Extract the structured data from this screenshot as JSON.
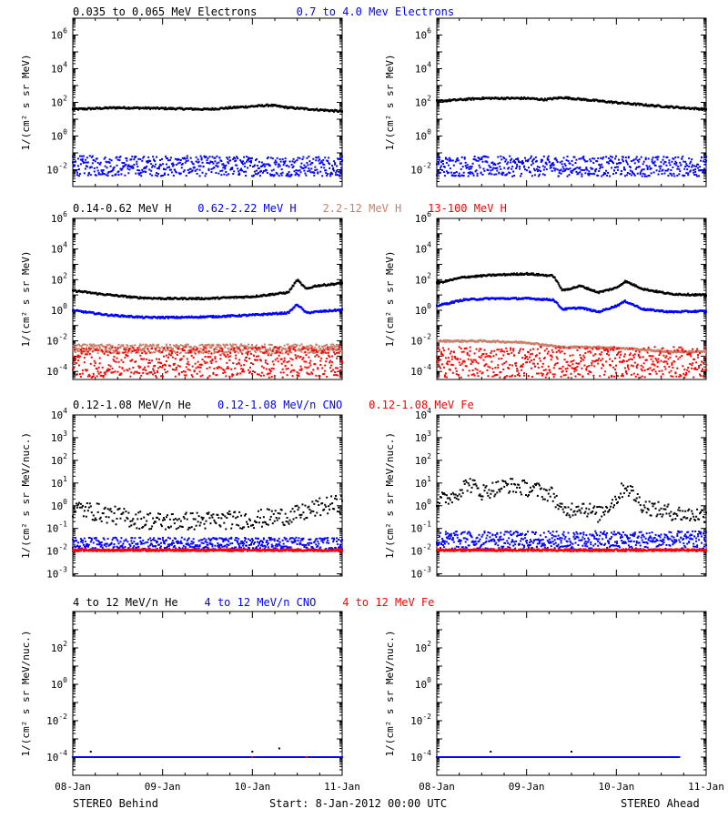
{
  "figure": {
    "footer": {
      "left": "STEREO Behind",
      "center": "Start:  8-Jan-2012 00:00 UTC",
      "right": "STEREO Ahead"
    },
    "x_ticks": [
      "08-Jan",
      "09-Jan",
      "10-Jan",
      "11-Jan"
    ],
    "rows": [
      {
        "headers": [
          {
            "text": "0.035 to 0.065 MeV Electrons",
            "color": "#000000"
          },
          {
            "text": "0.7 to 4.0 Mev Electrons",
            "color": "#0000ff"
          }
        ],
        "ylabel": "1/(cm² s sr MeV)"
      },
      {
        "headers": [
          {
            "text": "0.14-0.62 MeV H",
            "color": "#000000"
          },
          {
            "text": "0.62-2.22 MeV H",
            "color": "#0000ff"
          },
          {
            "text": "2.2-12 MeV H",
            "color": "#c8806a"
          },
          {
            "text": "13-100 MeV H",
            "color": "#ff0000"
          }
        ],
        "ylabel": "1/(cm² s sr MeV)"
      },
      {
        "headers": [
          {
            "text": "0.12-1.08 MeV/n He",
            "color": "#000000"
          },
          {
            "text": "0.12-1.08 MeV/n CNO",
            "color": "#0000ff"
          },
          {
            "text": "0.12-1.08 MeV Fe",
            "color": "#ff0000"
          }
        ],
        "ylabel": "1/(cm² s sr MeV/nuc.)"
      },
      {
        "headers": [
          {
            "text": "4 to 12 MeV/n He",
            "color": "#000000"
          },
          {
            "text": "4 to 12 MeV/n CNO",
            "color": "#0000ff"
          },
          {
            "text": "4 to 12 MeV Fe",
            "color": "#ff0000"
          }
        ],
        "ylabel": "1/(cm² s sr MeV/nuc.)"
      }
    ]
  },
  "chart_data": [
    {
      "panel": "behind-electrons",
      "type": "scatter",
      "scale": "log",
      "ylim": [
        0.001,
        10000000
      ],
      "yticks": [
        0.01,
        1,
        100,
        10000,
        1000000
      ],
      "xlim": [
        0,
        3
      ],
      "x_unit": "days since 08-Jan-2012 00:00 UTC",
      "series": [
        {
          "color": "#000000",
          "style": "line",
          "x": [
            0,
            0.5,
            1,
            1.5,
            2.2,
            2.4,
            3
          ],
          "y": [
            40,
            50,
            45,
            40,
            70,
            50,
            30
          ]
        },
        {
          "color": "#0000ff",
          "style": "band",
          "x": [
            0,
            3
          ],
          "y": [
            0.017,
            0.016
          ],
          "spread": 0.6
        }
      ]
    },
    {
      "panel": "ahead-electrons",
      "type": "scatter",
      "scale": "log",
      "ylim": [
        0.001,
        10000000
      ],
      "yticks": [
        0.01,
        1,
        100,
        10000,
        1000000
      ],
      "xlim": [
        0,
        3
      ],
      "series": [
        {
          "color": "#000000",
          "style": "line",
          "x": [
            0,
            0.5,
            1,
            1.2,
            1.4,
            2,
            2.5,
            3
          ],
          "y": [
            120,
            180,
            180,
            150,
            200,
            100,
            60,
            40
          ]
        },
        {
          "color": "#0000ff",
          "style": "band",
          "x": [
            0,
            3
          ],
          "y": [
            0.016,
            0.016
          ],
          "spread": 0.6
        }
      ]
    },
    {
      "panel": "behind-protons",
      "type": "scatter",
      "scale": "log",
      "ylim": [
        3e-05,
        1000000
      ],
      "yticks": [
        0.0001,
        0.01,
        1,
        100,
        10000,
        1000000
      ],
      "xlim": [
        0,
        3
      ],
      "series": [
        {
          "color": "#000000",
          "style": "line",
          "x": [
            0,
            0.3,
            0.7,
            1,
            1.5,
            2,
            2.4,
            2.5,
            2.6,
            2.7,
            3
          ],
          "y": [
            20,
            12,
            7,
            6,
            6,
            8,
            15,
            100,
            25,
            40,
            60
          ]
        },
        {
          "color": "#0000ff",
          "style": "line",
          "x": [
            0,
            0.4,
            0.8,
            1.2,
            1.6,
            2,
            2.4,
            2.5,
            2.6,
            2.7,
            3
          ],
          "y": [
            1.0,
            0.5,
            0.35,
            0.35,
            0.4,
            0.5,
            0.7,
            2.5,
            0.7,
            0.8,
            1.1
          ]
        },
        {
          "color": "#c8806a",
          "style": "band",
          "x": [
            0,
            3
          ],
          "y": [
            0.003,
            0.003
          ],
          "spread": 0.3
        },
        {
          "color": "#ff0000",
          "style": "band",
          "x": [
            0,
            3
          ],
          "y": [
            0.0004,
            0.0004
          ],
          "spread": 1.0
        }
      ]
    },
    {
      "panel": "ahead-protons",
      "type": "scatter",
      "scale": "log",
      "ylim": [
        3e-05,
        1000000
      ],
      "yticks": [
        0.0001,
        0.01,
        1,
        100,
        10000,
        1000000
      ],
      "xlim": [
        0,
        3
      ],
      "series": [
        {
          "color": "#000000",
          "style": "line",
          "x": [
            0,
            0.3,
            0.6,
            1,
            1.3,
            1.4,
            1.6,
            1.8,
            2,
            2.1,
            2.3,
            2.6,
            3
          ],
          "y": [
            60,
            150,
            200,
            250,
            180,
            20,
            40,
            15,
            30,
            80,
            25,
            12,
            10
          ]
        },
        {
          "color": "#0000ff",
          "style": "line",
          "x": [
            0,
            0.3,
            0.6,
            1,
            1.3,
            1.4,
            1.6,
            1.8,
            2,
            2.1,
            2.3,
            2.6,
            3
          ],
          "y": [
            2,
            5,
            6,
            6,
            5,
            1.2,
            1.5,
            0.8,
            2,
            4,
            1.2,
            0.8,
            0.9
          ]
        },
        {
          "color": "#c8806a",
          "style": "line",
          "x": [
            0,
            0.5,
            1,
            1.4,
            1.8,
            2.2,
            2.6,
            3
          ],
          "y": [
            0.01,
            0.01,
            0.008,
            0.004,
            0.004,
            0.003,
            0.002,
            0.002
          ]
        },
        {
          "color": "#ff0000",
          "style": "band",
          "x": [
            0,
            3
          ],
          "y": [
            0.0004,
            0.0004
          ],
          "spread": 1.0
        }
      ]
    },
    {
      "panel": "behind-heavy-ions",
      "type": "scatter",
      "scale": "log",
      "ylim": [
        0.0008,
        10000
      ],
      "yticks": [
        0.001,
        0.01,
        0.1,
        1,
        10,
        100,
        1000,
        10000
      ],
      "xlim": [
        0,
        3
      ],
      "series": [
        {
          "color": "#000000",
          "style": "scatter",
          "x": [
            0,
            0.3,
            0.7,
            1,
            1.5,
            2,
            2.2,
            2.5,
            2.8,
            3
          ],
          "y": [
            0.8,
            0.5,
            0.25,
            0.2,
            0.22,
            0.25,
            0.3,
            0.4,
            1.0,
            1.2
          ],
          "spread": 0.4
        },
        {
          "color": "#0000ff",
          "style": "band",
          "x": [
            0,
            3
          ],
          "y": [
            0.02,
            0.02
          ],
          "spread": 0.3
        },
        {
          "color": "#ff0000",
          "style": "band",
          "x": [
            0,
            3
          ],
          "y": [
            0.011,
            0.011
          ],
          "spread": 0.05
        }
      ]
    },
    {
      "panel": "ahead-heavy-ions",
      "type": "scatter",
      "scale": "log",
      "ylim": [
        0.0008,
        10000
      ],
      "yticks": [
        0.001,
        0.01,
        0.1,
        1,
        10,
        100,
        1000,
        10000
      ],
      "xlim": [
        0,
        3
      ],
      "series": [
        {
          "color": "#000000",
          "style": "scatter",
          "x": [
            0,
            0.2,
            0.35,
            0.5,
            0.8,
            1.1,
            1.3,
            1.4,
            1.6,
            1.8,
            2,
            2.1,
            2.3,
            2.5,
            2.8,
            3
          ],
          "y": [
            1.5,
            3,
            10,
            4,
            8,
            5,
            3,
            0.5,
            1,
            0.4,
            2,
            8,
            1,
            0.6,
            0.4,
            0.4
          ],
          "spread": 0.35
        },
        {
          "color": "#0000ff",
          "style": "band",
          "x": [
            0,
            3
          ],
          "y": [
            0.03,
            0.03
          ],
          "spread": 0.4
        },
        {
          "color": "#ff0000",
          "style": "band",
          "x": [
            0,
            3
          ],
          "y": [
            0.011,
            0.011
          ],
          "spread": 0.05
        }
      ]
    },
    {
      "panel": "behind-high-energy-ions",
      "type": "scatter",
      "scale": "log",
      "ylim": [
        1e-05,
        10000
      ],
      "yticks": [
        0.0001,
        0.01,
        1,
        100
      ],
      "xlim": [
        0,
        3
      ],
      "series": [
        {
          "color": "#000000",
          "style": "sparse",
          "x": [
            0,
            0.2,
            0.4,
            0.8,
            1.2,
            1.6,
            2,
            2.3,
            2.6,
            3
          ],
          "y": [
            0.0001,
            0.0002,
            0.0001,
            0.0001,
            0.0001,
            0.0001,
            0.0002,
            0.0003,
            0.0001,
            0.0001
          ]
        },
        {
          "color": "#0000ff",
          "style": "band",
          "x": [
            0,
            3
          ],
          "y": [
            0.0001,
            0.0001
          ],
          "spread": 0.0
        },
        {
          "color": "#ff0000",
          "style": "sparse",
          "x": [
            2,
            2.6
          ],
          "y": [
            0.0001,
            0.0001
          ]
        }
      ]
    },
    {
      "panel": "ahead-high-energy-ions",
      "type": "scatter",
      "scale": "log",
      "ylim": [
        1e-05,
        10000
      ],
      "yticks": [
        0.0001,
        0.01,
        1,
        100
      ],
      "xlim": [
        0,
        3
      ],
      "series": [
        {
          "color": "#000000",
          "style": "sparse",
          "x": [
            0.6,
            0.8,
            1.0,
            1.3,
            1.5,
            1.8
          ],
          "y": [
            0.0002,
            0.0001,
            0.0001,
            0.0001,
            0.0002,
            0.0001
          ]
        },
        {
          "color": "#0000ff",
          "style": "band",
          "x": [
            0,
            2.7
          ],
          "y": [
            0.0001,
            0.0001
          ],
          "spread": 0.0
        }
      ]
    }
  ]
}
